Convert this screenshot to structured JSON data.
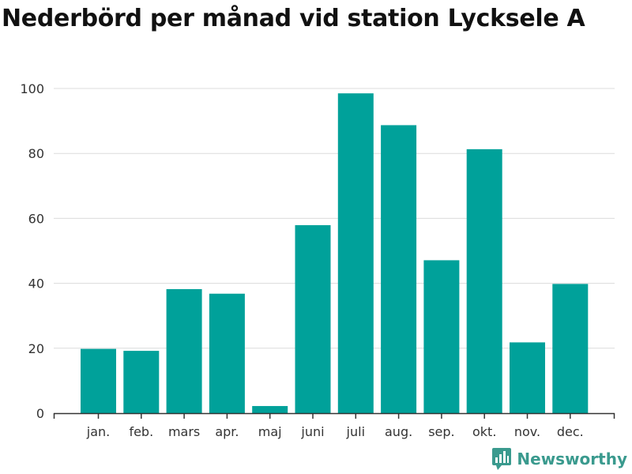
{
  "title": "Nederbörd per månad vid station Lycksele A",
  "brand": {
    "name": "Newsworthy",
    "color": "#3a9a8e",
    "icon": "bar-chart-logo-icon"
  },
  "chart_data": {
    "type": "bar",
    "title": "Nederbörd per månad vid station Lycksele A",
    "xlabel": "",
    "ylabel": "",
    "categories": [
      "jan.",
      "feb.",
      "mars",
      "apr.",
      "maj",
      "juni",
      "juli",
      "aug.",
      "sep.",
      "okt.",
      "nov.",
      "dec."
    ],
    "values": [
      19.8,
      19.2,
      38.2,
      36.8,
      2.2,
      57.9,
      98.5,
      88.7,
      47.1,
      81.3,
      21.8,
      39.8
    ],
    "yticks": [
      0,
      20,
      40,
      60,
      80,
      100
    ],
    "ylim": [
      0,
      100
    ],
    "bar_color": "#00a19a",
    "grid": true,
    "legend": "none"
  }
}
